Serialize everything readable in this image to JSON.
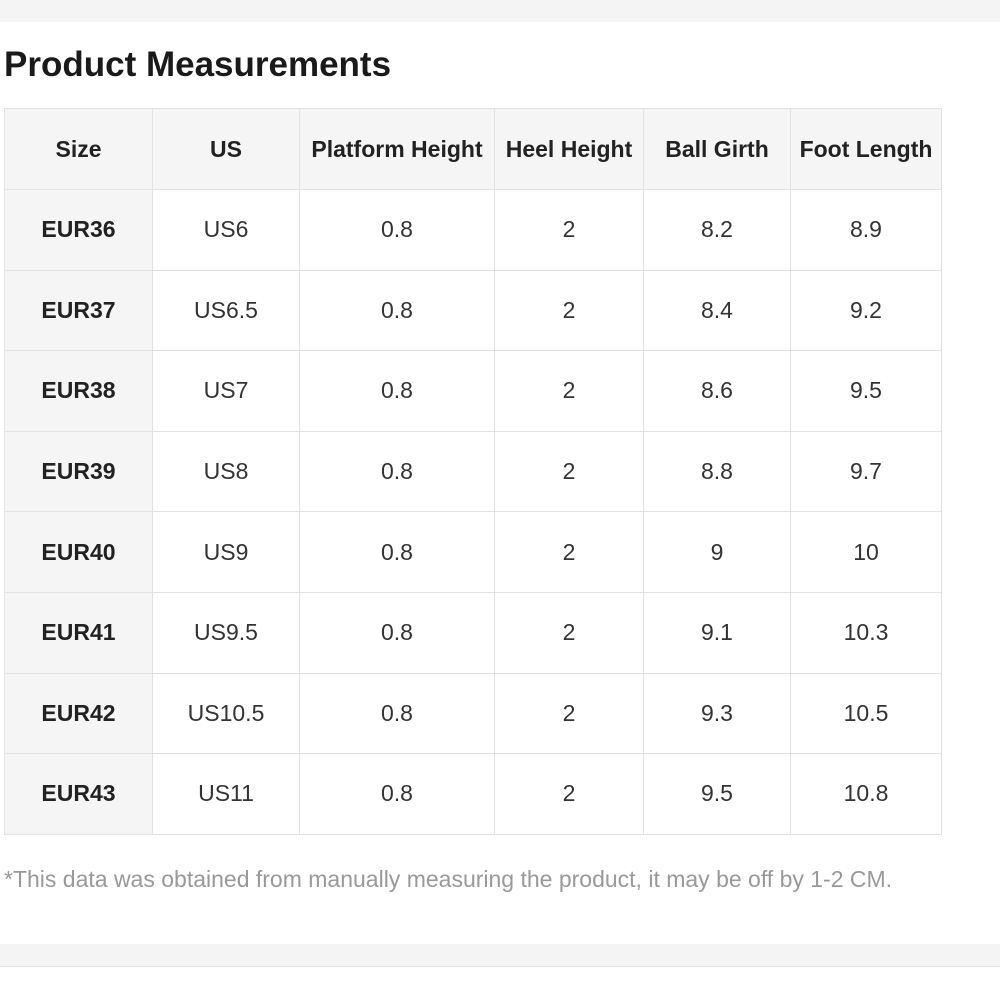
{
  "header": {
    "title": "Product Measurements"
  },
  "table": {
    "columns": [
      "Size",
      "US",
      "Platform Height",
      "Heel Height",
      "Ball Girth",
      "Foot Length"
    ],
    "rows": [
      [
        "EUR36",
        "US6",
        "0.8",
        "2",
        "8.2",
        "8.9"
      ],
      [
        "EUR37",
        "US6.5",
        "0.8",
        "2",
        "8.4",
        "9.2"
      ],
      [
        "EUR38",
        "US7",
        "0.8",
        "2",
        "8.6",
        "9.5"
      ],
      [
        "EUR39",
        "US8",
        "0.8",
        "2",
        "8.8",
        "9.7"
      ],
      [
        "EUR40",
        "US9",
        "0.8",
        "2",
        "9",
        "10"
      ],
      [
        "EUR41",
        "US9.5",
        "0.8",
        "2",
        "9.1",
        "10.3"
      ],
      [
        "EUR42",
        "US10.5",
        "0.8",
        "2",
        "9.3",
        "10.5"
      ],
      [
        "EUR43",
        "US11",
        "0.8",
        "2",
        "9.5",
        "10.8"
      ]
    ]
  },
  "note": "*This data was obtained from manually measuring the product, it may be off by 1-2 CM."
}
